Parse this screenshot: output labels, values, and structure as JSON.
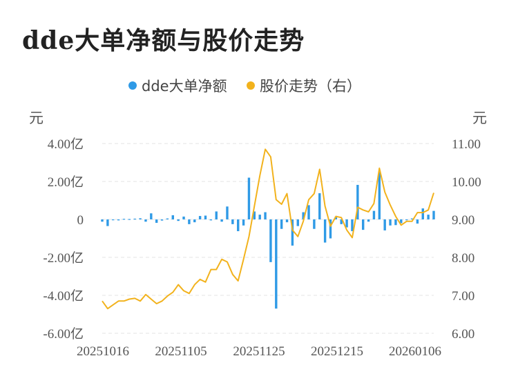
{
  "title": "dde大单净额与股价走势",
  "chart_data": {
    "type": "bar+line",
    "legend": {
      "items": [
        "dde大单净额",
        "股价走势（右）"
      ],
      "placement": "top-center"
    },
    "colors": {
      "bar": "#2f9ae6",
      "line": "#f2b21c"
    },
    "left_axis": {
      "unit": "元",
      "ticks": [
        "4.00亿",
        "2.00亿",
        "0",
        "-2.00亿",
        "-4.00亿",
        "-6.00亿"
      ],
      "ylim": [
        -6.0,
        4.0
      ],
      "unit_scale": "亿"
    },
    "right_axis": {
      "unit": "元",
      "ticks": [
        "11.00",
        "10.00",
        "9.00",
        "8.00",
        "7.00",
        "6.00"
      ],
      "ylim": [
        6.0,
        11.0
      ]
    },
    "x_ticks": [
      "20251016",
      "20251105",
      "20251125",
      "20251215",
      "20260106"
    ],
    "grid": "horizontal-dashed",
    "series": [
      {
        "name": "dde大单净额",
        "axis": "left",
        "type": "bar",
        "values": [
          -0.12,
          -0.35,
          0.0,
          -0.05,
          0.03,
          0.02,
          0.04,
          0.06,
          -0.12,
          0.32,
          -0.18,
          -0.06,
          0.05,
          0.22,
          -0.08,
          0.15,
          -0.25,
          -0.15,
          0.18,
          0.2,
          -0.05,
          0.42,
          -0.12,
          0.68,
          -0.25,
          -0.62,
          -0.32,
          2.2,
          0.42,
          0.25,
          0.38,
          -2.25,
          -4.7,
          -0.5,
          -0.15,
          -1.38,
          -0.35,
          0.38,
          0.75,
          -0.5,
          1.38,
          -1.22,
          -1.0,
          0.15,
          -0.25,
          -0.42,
          -0.62,
          1.82,
          -0.55,
          -0.12,
          0.45,
          2.52,
          -0.58,
          -0.32,
          -0.3,
          -0.2,
          0.0,
          0.05,
          -0.22,
          0.58,
          0.25,
          0.45
        ]
      },
      {
        "name": "股价走势（右）",
        "axis": "right",
        "type": "line",
        "values": [
          6.85,
          6.65,
          6.75,
          6.85,
          6.85,
          6.9,
          6.92,
          6.85,
          7.02,
          6.9,
          6.78,
          6.85,
          6.98,
          7.08,
          7.28,
          7.12,
          7.05,
          7.28,
          7.42,
          7.35,
          7.68,
          7.68,
          7.95,
          7.88,
          7.55,
          7.38,
          7.95,
          8.55,
          9.35,
          10.15,
          10.85,
          10.65,
          9.52,
          9.4,
          9.68,
          8.72,
          8.55,
          8.95,
          9.52,
          9.68,
          10.32,
          9.35,
          8.82,
          9.08,
          9.05,
          8.72,
          8.52,
          9.32,
          9.25,
          9.2,
          9.42,
          10.35,
          9.72,
          9.38,
          9.08,
          8.85,
          8.95,
          8.95,
          9.18,
          9.18,
          9.25,
          9.7
        ]
      }
    ]
  }
}
